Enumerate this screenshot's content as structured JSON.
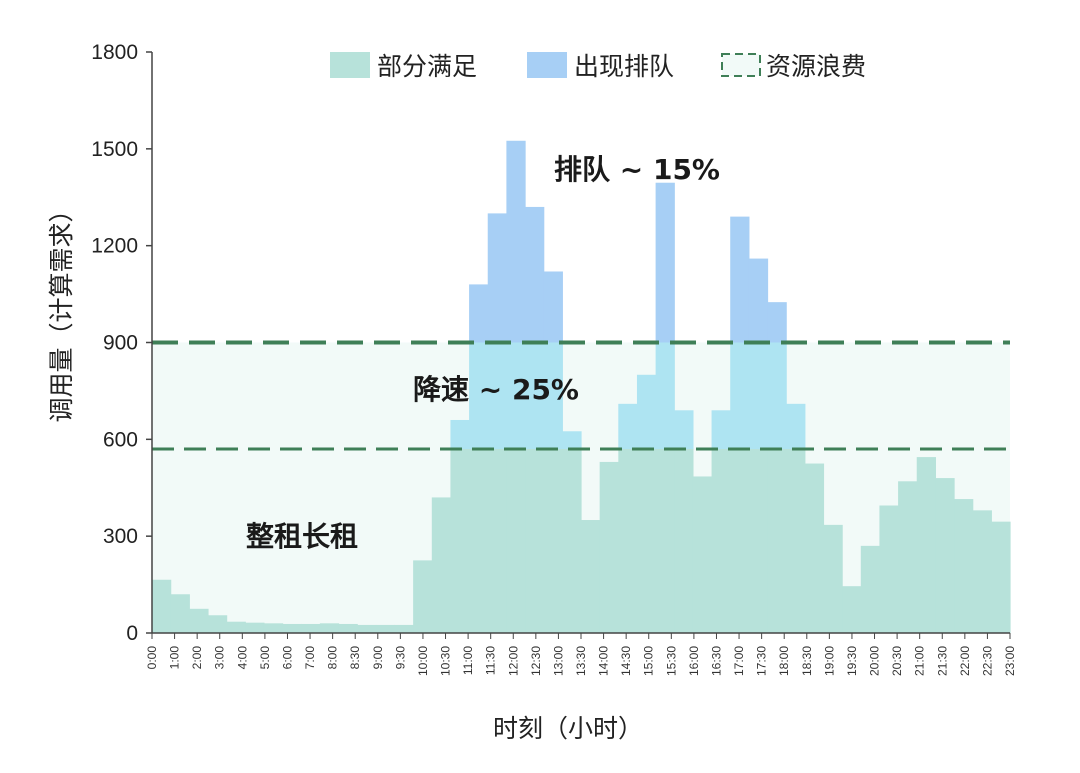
{
  "chart_data": {
    "type": "area",
    "x_tick_labels": [
      "0:00",
      "1:00",
      "2:00",
      "3:00",
      "4:00",
      "5:00",
      "6:00",
      "7:00",
      "8:00",
      "8:30",
      "9:00",
      "9:30",
      "10:00",
      "10:30",
      "11:00",
      "11:30",
      "12:00",
      "12:30",
      "13:00",
      "13:30",
      "14:00",
      "14:30",
      "15:00",
      "15:30",
      "16:00",
      "16:30",
      "17:00",
      "17:30",
      "18:00",
      "18:30",
      "19:00",
      "19:30",
      "20:00",
      "20:30",
      "21:00",
      "21:30",
      "22:00",
      "22:30",
      "23:00"
    ],
    "values": [
      165,
      120,
      75,
      55,
      35,
      32,
      30,
      28,
      28,
      30,
      28,
      25,
      25,
      25,
      225,
      420,
      660,
      1080,
      1300,
      1525,
      1320,
      1120,
      625,
      350,
      530,
      710,
      800,
      1395,
      690,
      485,
      690,
      1290,
      1160,
      1025,
      710,
      525,
      335,
      145,
      270,
      395,
      470,
      545,
      480,
      415,
      380,
      345
    ],
    "long_term_capacity": 570,
    "peak_capacity": 900,
    "ylim": [
      0,
      1800
    ],
    "yticks": [
      0,
      300,
      600,
      900,
      1200,
      1500,
      1800
    ],
    "ylabel": "调用量（计算需求）",
    "xlabel": "时刻（小时）",
    "legend": [
      {
        "name": "部分满足",
        "color": "#b7e2da"
      },
      {
        "name": "出现排队",
        "color": "#a7cff5"
      },
      {
        "name": "资源浪费",
        "color": "#3f7f57"
      }
    ],
    "annotations": {
      "queue": "排队 ~ 15%",
      "slowdown": "降速 ~ 25%",
      "longterm": "整租长租"
    },
    "colors": {
      "base": "#b7e2da",
      "between": "#aee4f2",
      "queue": "#a7cff5",
      "waste": "#f2faf8",
      "dash": "#3f7f57"
    }
  }
}
